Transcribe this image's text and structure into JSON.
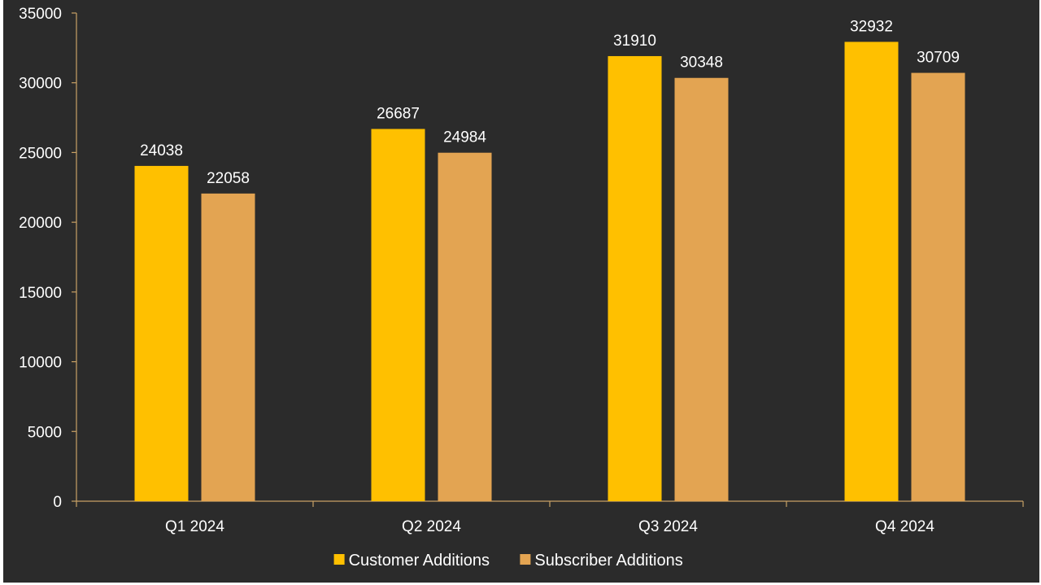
{
  "chart_data": {
    "type": "bar",
    "title": "",
    "xlabel": "",
    "ylabel": "",
    "categories": [
      "Q1 2024",
      "Q2 2024",
      "Q3 2024",
      "Q4 2024"
    ],
    "series": [
      {
        "name": "Customer Additions",
        "values": [
          24038,
          26687,
          31910,
          32932
        ],
        "color": "#FFC000"
      },
      {
        "name": "Subscriber Additions",
        "values": [
          22058,
          24984,
          30348,
          30709
        ],
        "color": "#E3A452"
      }
    ],
    "ylim": [
      0,
      35000
    ],
    "yticks": [
      0,
      5000,
      10000,
      15000,
      20000,
      25000,
      30000,
      35000
    ],
    "grid": false,
    "legend_position": "bottom",
    "data_labels": true,
    "axis_color": "#C8A165",
    "background": "#2B2B2B"
  }
}
